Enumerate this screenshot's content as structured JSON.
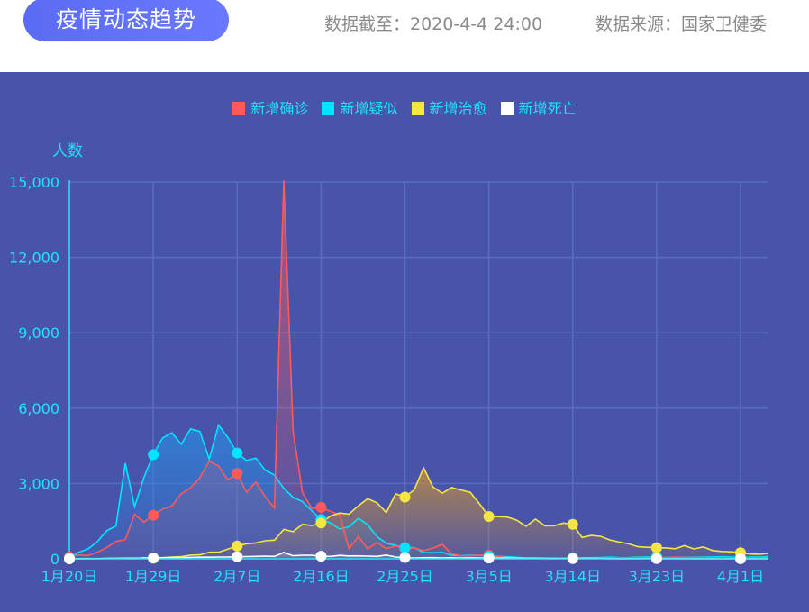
{
  "header": {
    "title": "疫情动态趋势",
    "as_of": "数据截至：2020-4-4 24:00",
    "source": "数据来源：国家卫健委"
  },
  "colors": {
    "background": "#4854a9",
    "axis": "#21e3f5",
    "confirmed": "#ff5a5a",
    "suspected": "#00e5ff",
    "cured": "#f5e642",
    "deaths": "#ffffff"
  },
  "chart_data": {
    "type": "line",
    "area": true,
    "grid": true,
    "legend_position": "top-center",
    "ylabel": "人数",
    "ylim": [
      0,
      15000
    ],
    "y_ticks": [
      "0",
      "3,000",
      "6,000",
      "9,000",
      "12,000",
      "15,000"
    ],
    "x_tick_labels": [
      "1月20日",
      "1月29日",
      "2月7日",
      "2月16日",
      "2月25日",
      "3月5日",
      "3月14日",
      "3月23日",
      "4月1日"
    ],
    "x_start": "1月20日",
    "x_end": "4月4日",
    "series": [
      {
        "name": "新增确诊",
        "color": "#ff5a5a",
        "values": [
          77,
          149,
          131,
          259,
          444,
          688,
          769,
          1771,
          1459,
          1737,
          1982,
          2102,
          2590,
          2829,
          3235,
          3887,
          3694,
          3143,
          3399,
          2656,
          3062,
          2478,
          2015,
          15152,
          5090,
          2641,
          2009,
          2048,
          1886,
          1749,
          394,
          889,
          397,
          648,
          409,
          508,
          406,
          433,
          327,
          427,
          573,
          202,
          125,
          119,
          139,
          143,
          99,
          44,
          40,
          19,
          24,
          15,
          8,
          11,
          20,
          16,
          21,
          13,
          34,
          39,
          41,
          46,
          39,
          78,
          47,
          67,
          55,
          54,
          45,
          31,
          48,
          36,
          35,
          31,
          19,
          30
        ]
      },
      {
        "name": "新增疑似",
        "color": "#00e5ff",
        "values": [
          27,
          257,
          393,
          680,
          1118,
          1309,
          3806,
          2077,
          3248,
          4148,
          4812,
          5019,
          4562,
          5173,
          5072,
          3971,
          5328,
          4833,
          4214,
          3916,
          4008,
          3536,
          3342,
          2807,
          2450,
          2277,
          1918,
          1563,
          1432,
          1185,
          1277,
          1614,
          1361,
          882,
          620,
          530,
          439,
          452,
          248,
          242,
          259,
          141,
          129,
          143,
          143,
          102,
          99,
          84,
          60,
          36,
          31,
          33,
          33,
          17,
          39,
          41,
          45,
          45,
          73,
          47,
          50,
          70,
          73,
          95,
          55,
          63,
          60,
          64,
          72,
          75,
          84,
          70,
          55,
          70,
          72,
          86
        ]
      },
      {
        "name": "新增治愈",
        "color": "#f5e642",
        "values": [
          0,
          0,
          3,
          6,
          11,
          13,
          9,
          2,
          43,
          21,
          47,
          72,
          85,
          147,
          157,
          262,
          261,
          387,
          510,
          600,
          632,
          716,
          744,
          1171,
          1081,
          1373,
          1323,
          1425,
          1701,
          1824,
          1779,
          2109,
          2394,
          2230,
          1846,
          2589,
          2460,
          2750,
          3622,
          2867,
          2614,
          2837,
          2742,
          2652,
          2189,
          1685,
          1678,
          1661,
          1535,
          1297,
          1578,
          1318,
          1318,
          1426,
          1374,
          849,
          930,
          894,
          750,
          668,
          595,
          481,
          459,
          441,
          434,
          403,
          525,
          392,
          473,
          331,
          296,
          279,
          244,
          190,
          183,
          215
        ]
      },
      {
        "name": "新增死亡",
        "color": "#ffffff",
        "values": [
          3,
          6,
          9,
          8,
          16,
          15,
          24,
          26,
          26,
          38,
          43,
          46,
          45,
          57,
          64,
          65,
          73,
          73,
          86,
          89,
          97,
          108,
          97,
          254,
          121,
          143,
          142,
          105,
          98,
          136,
          114,
          118,
          109,
          97,
          150,
          71,
          52,
          29,
          44,
          47,
          35,
          42,
          31,
          38,
          31,
          30,
          28,
          27,
          22,
          17,
          22,
          11,
          7,
          13,
          10,
          14,
          13,
          11,
          8,
          3,
          7,
          6,
          9,
          7,
          4,
          6,
          5,
          3,
          5,
          4,
          1,
          7,
          6,
          4,
          4,
          3
        ]
      }
    ]
  }
}
